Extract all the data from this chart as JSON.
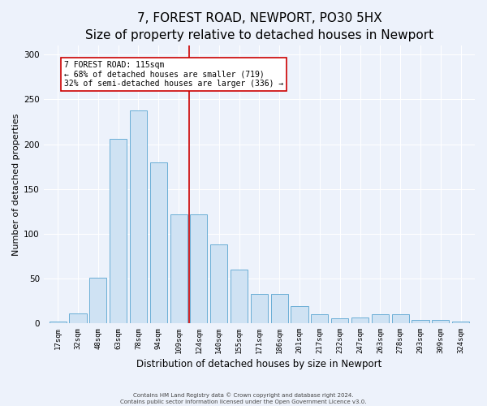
{
  "title": "7, FOREST ROAD, NEWPORT, PO30 5HX",
  "subtitle": "Size of property relative to detached houses in Newport",
  "xlabel": "Distribution of detached houses by size in Newport",
  "ylabel": "Number of detached properties",
  "categories": [
    "17sqm",
    "32sqm",
    "48sqm",
    "63sqm",
    "78sqm",
    "94sqm",
    "109sqm",
    "124sqm",
    "140sqm",
    "155sqm",
    "171sqm",
    "186sqm",
    "201sqm",
    "217sqm",
    "232sqm",
    "247sqm",
    "263sqm",
    "278sqm",
    "293sqm",
    "309sqm",
    "324sqm"
  ],
  "values": [
    2,
    11,
    51,
    206,
    238,
    180,
    122,
    122,
    88,
    60,
    33,
    33,
    19,
    10,
    5,
    6,
    10,
    10,
    4,
    4,
    2
  ],
  "bar_color": "#cfe2f3",
  "bar_edge_color": "#6aaed6",
  "highlight_line_color": "#cc0000",
  "annotation_text": "7 FOREST ROAD: 115sqm\n← 68% of detached houses are smaller (719)\n32% of semi-detached houses are larger (336) →",
  "annotation_box_color": "#ffffff",
  "annotation_box_edge": "#cc0000",
  "ylim": [
    0,
    310
  ],
  "yticks": [
    0,
    50,
    100,
    150,
    200,
    250,
    300
  ],
  "title_fontsize": 11,
  "xlabel_fontsize": 8.5,
  "ylabel_fontsize": 8,
  "footer_text": "Contains HM Land Registry data © Crown copyright and database right 2024.\nContains public sector information licensed under the Open Government Licence v3.0.",
  "background_color": "#edf2fb",
  "plot_background_color": "#edf2fb",
  "grid_color": "#ffffff"
}
